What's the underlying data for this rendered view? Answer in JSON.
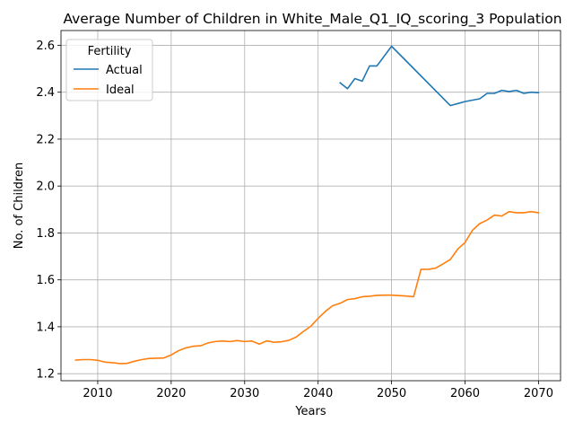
{
  "chart_data": {
    "type": "line",
    "title": "Average Number of Children in White_Male_Q1_IQ_scoring_3 Population",
    "xlabel": "Years",
    "ylabel": "No. of Children",
    "xlim": [
      2005,
      2073
    ],
    "ylim": [
      1.17,
      2.663
    ],
    "xticks": [
      2010,
      2020,
      2030,
      2040,
      2050,
      2060,
      2070
    ],
    "yticks": [
      1.2,
      1.4,
      1.6,
      1.8,
      2.0,
      2.2,
      2.4,
      2.6
    ],
    "xtick_labels": [
      "2010",
      "2020",
      "2030",
      "2040",
      "2050",
      "2060",
      "2070"
    ],
    "ytick_labels": [
      "1.2",
      "1.4",
      "1.6",
      "1.8",
      "2.0",
      "2.2",
      "2.4",
      "2.6"
    ],
    "grid": true,
    "legend": {
      "title": "Fertility",
      "placement": "top-left"
    },
    "series": [
      {
        "name": "Actual",
        "color": "#1f77b4",
        "x": [
          2043,
          2044,
          2045,
          2046,
          2047,
          2048,
          2050,
          2058,
          2060,
          2062,
          2063,
          2064,
          2065,
          2066,
          2067,
          2068,
          2069,
          2070
        ],
        "y": [
          2.44,
          2.415,
          2.458,
          2.447,
          2.512,
          2.512,
          2.596,
          2.343,
          2.36,
          2.372,
          2.395,
          2.395,
          2.408,
          2.403,
          2.408,
          2.395,
          2.4,
          2.398
        ]
      },
      {
        "name": "Ideal",
        "color": "#ff7f0e",
        "x": [
          2007,
          2008,
          2009,
          2010,
          2011,
          2012,
          2013,
          2014,
          2015,
          2016,
          2017,
          2018,
          2019,
          2020,
          2021,
          2022,
          2023,
          2024,
          2025,
          2026,
          2027,
          2028,
          2029,
          2030,
          2031,
          2032,
          2033,
          2034,
          2035,
          2036,
          2037,
          2038,
          2039,
          2040,
          2041,
          2042,
          2043,
          2044,
          2045,
          2046,
          2047,
          2048,
          2049,
          2050,
          2051,
          2052,
          2053,
          2054,
          2055,
          2056,
          2057,
          2058,
          2059,
          2060,
          2061,
          2062,
          2063,
          2064,
          2065,
          2066,
          2067,
          2068,
          2069,
          2070
        ],
        "y": [
          1.258,
          1.26,
          1.26,
          1.257,
          1.249,
          1.247,
          1.243,
          1.244,
          1.253,
          1.26,
          1.265,
          1.266,
          1.267,
          1.28,
          1.298,
          1.31,
          1.317,
          1.319,
          1.331,
          1.337,
          1.339,
          1.337,
          1.341,
          1.337,
          1.339,
          1.326,
          1.34,
          1.334,
          1.336,
          1.342,
          1.356,
          1.38,
          1.402,
          1.436,
          1.466,
          1.49,
          1.5,
          1.516,
          1.52,
          1.528,
          1.53,
          1.534,
          1.535,
          1.535,
          1.533,
          1.531,
          1.528,
          1.645,
          1.645,
          1.65,
          1.668,
          1.687,
          1.731,
          1.759,
          1.811,
          1.84,
          1.855,
          1.876,
          1.872,
          1.891,
          1.886,
          1.886,
          1.891,
          1.886
        ]
      }
    ]
  }
}
